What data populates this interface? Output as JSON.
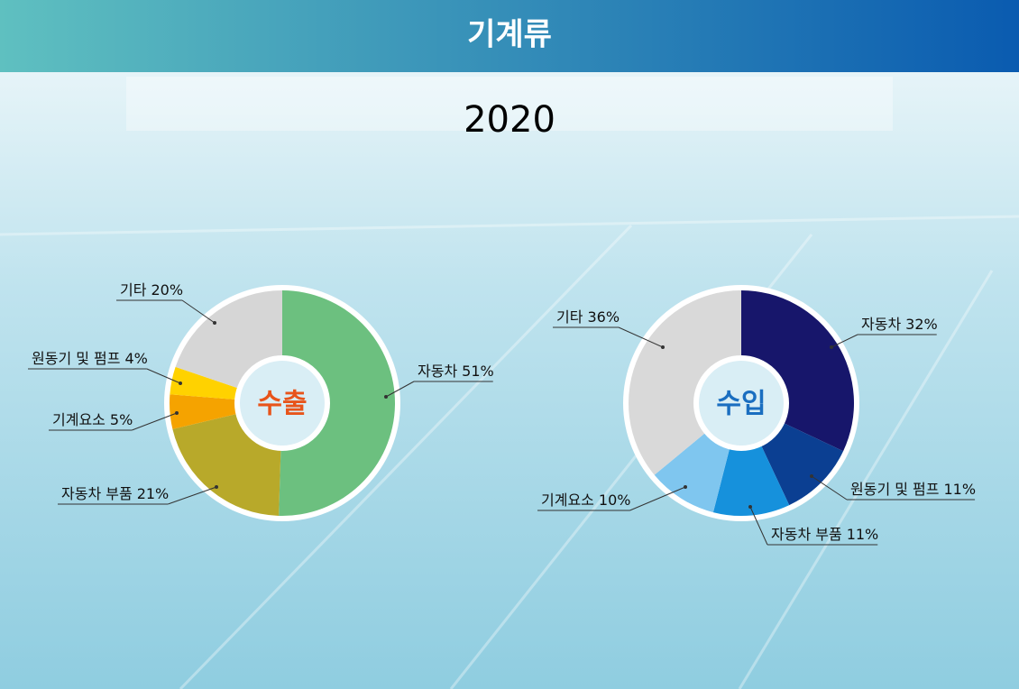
{
  "title": "기계류",
  "subtitle": "2020",
  "chart_data": [
    {
      "type": "pie",
      "center_label": "수출",
      "categories": [
        "자동차",
        "자동차 부품",
        "기계요소",
        "원동기 및 펌프",
        "기타"
      ],
      "values": [
        51,
        21,
        5,
        4,
        20
      ],
      "value_labels": [
        "51%",
        "21%",
        "5%",
        "4%",
        "20%"
      ],
      "colors": [
        "#6cc07f",
        "#b8a92a",
        "#f5a300",
        "#ffd200",
        "#d6d6d6"
      ]
    },
    {
      "type": "pie",
      "center_label": "수입",
      "categories": [
        "자동차",
        "원동기 및 펌프",
        "자동차 부품",
        "기계요소",
        "기타"
      ],
      "values": [
        32,
        11,
        11,
        10,
        36
      ],
      "value_labels": [
        "32%",
        "11%",
        "11%",
        "10%",
        "36%"
      ],
      "colors": [
        "#17166b",
        "#0b3f92",
        "#1691dc",
        "#7fc6ef",
        "#d9d9d9"
      ]
    }
  ]
}
